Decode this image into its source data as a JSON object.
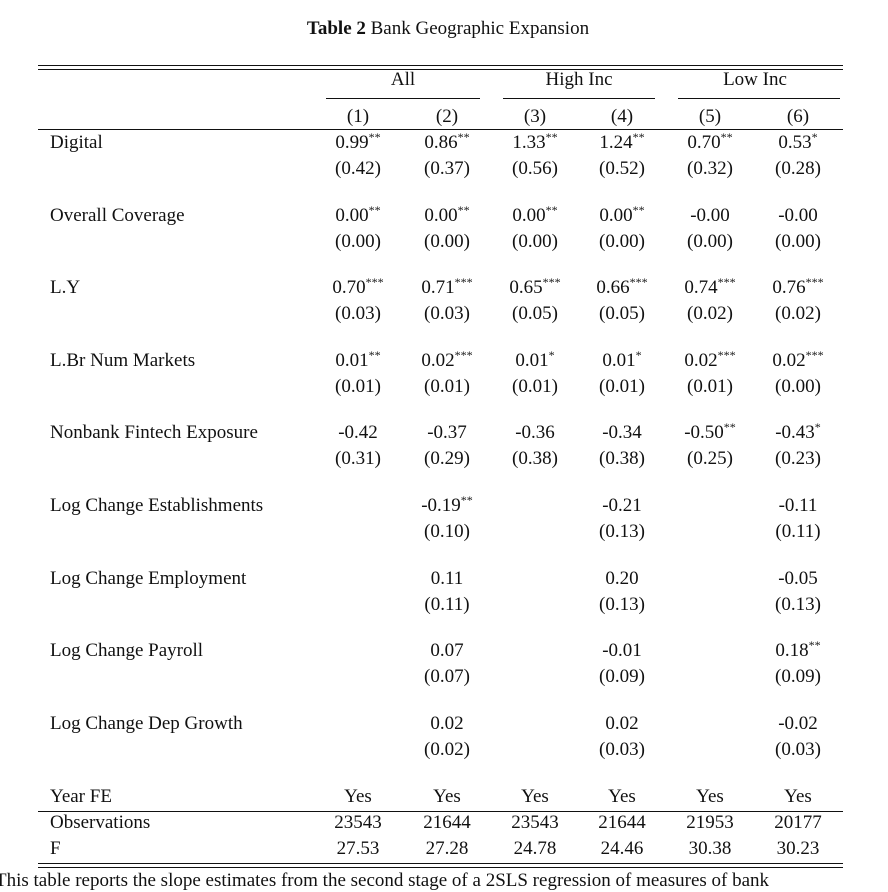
{
  "title": {
    "label": "Table 2",
    "text": "Bank Geographic Expansion"
  },
  "groups": [
    "All",
    "High Inc",
    "Low Inc"
  ],
  "columns": [
    "(1)",
    "(2)",
    "(3)",
    "(4)",
    "(5)",
    "(6)"
  ],
  "rows": [
    {
      "label": "Digital",
      "coef": [
        {
          "value": "0.99",
          "stars": "**"
        },
        {
          "value": "0.86",
          "stars": "**"
        },
        {
          "value": "1.33",
          "stars": "**"
        },
        {
          "value": "1.24",
          "stars": "**"
        },
        {
          "value": "0.70",
          "stars": "**"
        },
        {
          "value": "0.53",
          "stars": "*"
        }
      ],
      "se": [
        "(0.42)",
        "(0.37)",
        "(0.56)",
        "(0.52)",
        "(0.32)",
        "(0.28)"
      ]
    },
    {
      "label": "Overall Coverage",
      "coef": [
        {
          "value": "0.00",
          "stars": "**"
        },
        {
          "value": "0.00",
          "stars": "**"
        },
        {
          "value": "0.00",
          "stars": "**"
        },
        {
          "value": "0.00",
          "stars": "**"
        },
        {
          "value": "-0.00"
        },
        {
          "value": "-0.00"
        }
      ],
      "se": [
        "(0.00)",
        "(0.00)",
        "(0.00)",
        "(0.00)",
        "(0.00)",
        "(0.00)"
      ]
    },
    {
      "label": "L.Y",
      "coef": [
        {
          "value": "0.70",
          "stars": "***"
        },
        {
          "value": "0.71",
          "stars": "***"
        },
        {
          "value": "0.65",
          "stars": "***"
        },
        {
          "value": "0.66",
          "stars": "***"
        },
        {
          "value": "0.74",
          "stars": "***"
        },
        {
          "value": "0.76",
          "stars": "***"
        }
      ],
      "se": [
        "(0.03)",
        "(0.03)",
        "(0.05)",
        "(0.05)",
        "(0.02)",
        "(0.02)"
      ]
    },
    {
      "label": "L.Br Num Markets",
      "coef": [
        {
          "value": "0.01",
          "stars": "**"
        },
        {
          "value": "0.02",
          "stars": "***"
        },
        {
          "value": "0.01",
          "stars": "*"
        },
        {
          "value": "0.01",
          "stars": "*"
        },
        {
          "value": "0.02",
          "stars": "***"
        },
        {
          "value": "0.02",
          "stars": "***"
        }
      ],
      "se": [
        "(0.01)",
        "(0.01)",
        "(0.01)",
        "(0.01)",
        "(0.01)",
        "(0.00)"
      ]
    },
    {
      "label": "Nonbank Fintech Exposure",
      "coef": [
        {
          "value": "-0.42"
        },
        {
          "value": "-0.37"
        },
        {
          "value": "-0.36"
        },
        {
          "value": "-0.34"
        },
        {
          "value": "-0.50",
          "stars": "**"
        },
        {
          "value": "-0.43",
          "stars": "*"
        }
      ],
      "se": [
        "(0.31)",
        "(0.29)",
        "(0.38)",
        "(0.38)",
        "(0.25)",
        "(0.23)"
      ]
    },
    {
      "label": "Log Change Establishments",
      "coef": [
        null,
        {
          "value": "-0.19",
          "stars": "**"
        },
        null,
        {
          "value": "-0.21"
        },
        null,
        {
          "value": "-0.11"
        }
      ],
      "se": [
        null,
        "(0.10)",
        null,
        "(0.13)",
        null,
        "(0.11)"
      ]
    },
    {
      "label": "Log Change Employment",
      "coef": [
        null,
        {
          "value": "0.11"
        },
        null,
        {
          "value": "0.20"
        },
        null,
        {
          "value": "-0.05"
        }
      ],
      "se": [
        null,
        "(0.11)",
        null,
        "(0.13)",
        null,
        "(0.13)"
      ]
    },
    {
      "label": "Log Change Payroll",
      "coef": [
        null,
        {
          "value": "0.07"
        },
        null,
        {
          "value": "-0.01"
        },
        null,
        {
          "value": "0.18",
          "stars": "**"
        }
      ],
      "se": [
        null,
        "(0.07)",
        null,
        "(0.09)",
        null,
        "(0.09)"
      ]
    },
    {
      "label": "Log Change Dep Growth",
      "coef": [
        null,
        {
          "value": "0.02"
        },
        null,
        {
          "value": "0.02"
        },
        null,
        {
          "value": "-0.02"
        }
      ],
      "se": [
        null,
        "(0.02)",
        null,
        "(0.03)",
        null,
        "(0.03)"
      ]
    }
  ],
  "footer_rows": [
    {
      "label": "Year FE",
      "cells": [
        "Yes",
        "Yes",
        "Yes",
        "Yes",
        "Yes",
        "Yes"
      ]
    },
    {
      "label": "Observations",
      "cells": [
        23543,
        21644,
        23543,
        21644,
        21953,
        20177
      ]
    },
    {
      "label": "F",
      "cells": [
        27.53,
        27.28,
        24.78,
        24.46,
        30.38,
        30.23
      ]
    }
  ],
  "note": "This table reports the slope estimates from the second stage of a 2SLS regression of measures of bank"
}
